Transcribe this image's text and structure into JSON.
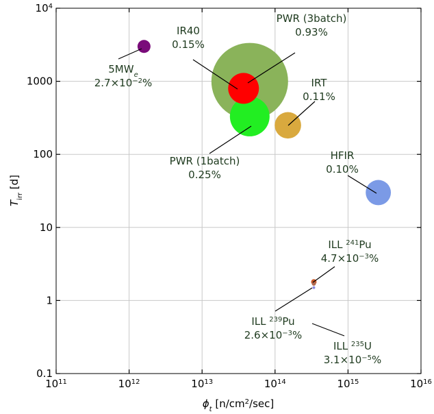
{
  "chart_data": {
    "type": "scatter",
    "xscale": "log",
    "yscale": "log",
    "xlim": [
      100000000000.0,
      1e+16
    ],
    "ylim": [
      0.1,
      10000
    ],
    "grid": true,
    "xlabel": {
      "main": "ϕ",
      "sub": "t",
      "unit_pre": " [n/cm",
      "sup": "2",
      "unit_post": "/sec]"
    },
    "ylabel": {
      "main": "T",
      "sub": "irr",
      "unit": " [d]"
    },
    "x_ticks": [
      {
        "value": 100000000000.0,
        "base": "10",
        "exp": "11"
      },
      {
        "value": 1000000000000.0,
        "base": "10",
        "exp": "12"
      },
      {
        "value": 10000000000000.0,
        "base": "10",
        "exp": "13"
      },
      {
        "value": 100000000000000.0,
        "base": "10",
        "exp": "14"
      },
      {
        "value": 1000000000000000.0,
        "base": "10",
        "exp": "15"
      },
      {
        "value": 1e+16,
        "base": "10",
        "exp": "16"
      }
    ],
    "y_ticks": [
      {
        "value": 0.1,
        "base": "0.1",
        "exp": ""
      },
      {
        "value": 1,
        "base": "1",
        "exp": ""
      },
      {
        "value": 10,
        "base": "10",
        "exp": ""
      },
      {
        "value": 100,
        "base": "100",
        "exp": ""
      },
      {
        "value": 1000,
        "base": "1000",
        "exp": ""
      },
      {
        "value": 10000,
        "base": "10",
        "exp": "4"
      }
    ],
    "points": [
      {
        "id": "pwr-3batch",
        "x": 45000000000000.0,
        "y": 1000,
        "fraction_percent": 0.93,
        "color": "#8ab35a"
      },
      {
        "id": "pwr-1batch",
        "x": 45000000000000.0,
        "y": 330,
        "fraction_percent": 0.25,
        "color": "#22ee22"
      },
      {
        "id": "ir40",
        "x": 37000000000000.0,
        "y": 800,
        "fraction_percent": 0.15,
        "color": "#ff0000"
      },
      {
        "id": "irt",
        "x": 150000000000000.0,
        "y": 250,
        "fraction_percent": 0.11,
        "color": "#d9a93e"
      },
      {
        "id": "hfir",
        "x": 2600000000000000.0,
        "y": 30,
        "fraction_percent": 0.1,
        "color": "#7b9ae6"
      },
      {
        "id": "5mwe",
        "x": 1600000000000.0,
        "y": 3000,
        "fraction_percent": 0.027,
        "color": "#7a0c7a"
      },
      {
        "id": "ill-241pu",
        "x": 340000000000000.0,
        "y": 1.8,
        "fraction_percent": 0.0047,
        "color": "#cc5a2a"
      },
      {
        "id": "ill-239pu",
        "x": 340000000000000.0,
        "y": 1.7,
        "fraction_percent": 0.0026,
        "color": "#b06a50"
      },
      {
        "id": "ill-235u",
        "x": 340000000000000.0,
        "y": 1.5,
        "fraction_percent": 3.1e-05,
        "color": "#8a8ae0"
      }
    ],
    "annotations": [
      {
        "id": "pwr-3batch",
        "line1": "PWR (3batch)",
        "line2": "0.93%"
      },
      {
        "id": "ir40",
        "line1": "IR40",
        "line2": "0.15%"
      },
      {
        "id": "5mwe",
        "line1": "5MW",
        "line1_sub": "e",
        "line2": "2.7×10",
        "line2_sup": "−2",
        "line2_tail": "%"
      },
      {
        "id": "irt",
        "line1": "IRT",
        "line2": "0.11%"
      },
      {
        "id": "pwr-1batch",
        "line1": "PWR (1batch)",
        "line2": "0.25%"
      },
      {
        "id": "hfir",
        "line1": "HFIR",
        "line2": "0.10%"
      },
      {
        "id": "ill-241pu",
        "line1_pre": "ILL ",
        "line1_sup": "241",
        "line1_post": "Pu",
        "line2": "4.7×10",
        "line2_sup": "−3",
        "line2_tail": "%"
      },
      {
        "id": "ill-239pu",
        "line1_pre": "ILL ",
        "line1_sup": "239",
        "line1_post": "Pu",
        "line2": "2.6×10",
        "line2_sup": "−3",
        "line2_tail": "%"
      },
      {
        "id": "ill-235u",
        "line1_pre": "ILL ",
        "line1_sup": "235",
        "line1_post": "U",
        "line2": "3.1×10",
        "line2_sup": "−5",
        "line2_tail": "%"
      }
    ]
  }
}
